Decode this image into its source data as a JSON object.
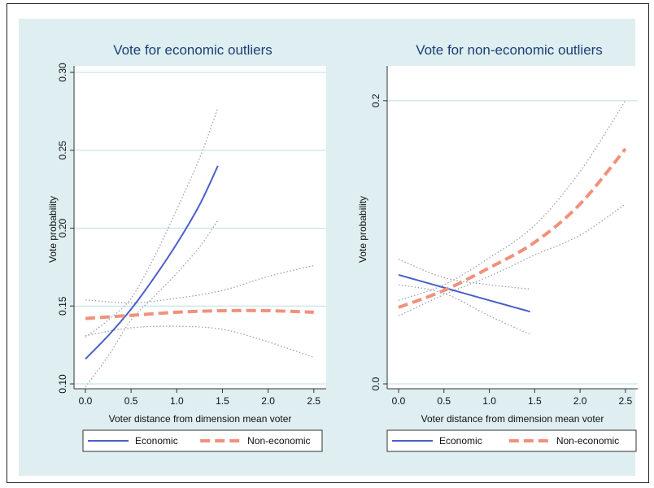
{
  "chart_data": [
    {
      "type": "line",
      "title": "Vote for economic outliers",
      "xlabel": "Voter distance from dimension mean voter",
      "ylabel": "Vote probability",
      "xlim": [
        0,
        2.6
      ],
      "ylim": [
        0.1,
        0.3
      ],
      "xticks": [
        "0.0",
        "0.5",
        "1.0",
        "1.5",
        "2.0",
        "2.5"
      ],
      "xtick_values": [
        0,
        0.5,
        1.0,
        1.5,
        2.0,
        2.5
      ],
      "yticks": [
        "0.10",
        "0.15",
        "0.20",
        "0.25",
        "0.30"
      ],
      "ytick_values": [
        0.1,
        0.15,
        0.2,
        0.25,
        0.3
      ],
      "grid": true,
      "series": [
        {
          "name": "Economic",
          "x": [
            0,
            0.25,
            0.5,
            0.75,
            1.0,
            1.25,
            1.45
          ],
          "values": [
            0.116,
            0.131,
            0.148,
            0.168,
            0.19,
            0.215,
            0.24
          ],
          "ci_lower": [
            0.098,
            0.118,
            0.141,
            0.156,
            0.171,
            0.188,
            0.205
          ],
          "ci_upper": [
            0.13,
            0.141,
            0.155,
            0.181,
            0.212,
            0.245,
            0.277
          ]
        },
        {
          "name": "Non-economic",
          "x": [
            0,
            0.5,
            1.0,
            1.5,
            2.0,
            2.5
          ],
          "values": [
            0.142,
            0.144,
            0.146,
            0.147,
            0.147,
            0.146
          ],
          "ci_lower": [
            0.131,
            0.136,
            0.137,
            0.135,
            0.127,
            0.117
          ],
          "ci_upper": [
            0.154,
            0.152,
            0.155,
            0.16,
            0.169,
            0.176
          ]
        }
      ]
    },
    {
      "type": "line",
      "title": "Vote for non-economic outliers",
      "xlabel": "Voter distance from dimension mean voter",
      "ylabel": "Vote probability",
      "xlim": [
        0,
        2.6
      ],
      "ylim": [
        0,
        0.22
      ],
      "xticks": [
        "0.0",
        "0.5",
        "1.0",
        "1.5",
        "2.0",
        "2.5"
      ],
      "xtick_values": [
        0,
        0.5,
        1.0,
        1.5,
        2.0,
        2.5
      ],
      "yticks": [
        "0.0",
        "0.2"
      ],
      "ytick_values": [
        0.0,
        0.2
      ],
      "grid": true,
      "series": [
        {
          "name": "Economic",
          "x": [
            0,
            0.5,
            1.0,
            1.45
          ],
          "values": [
            0.077,
            0.068,
            0.059,
            0.051
          ],
          "ci_lower": [
            0.07,
            0.064,
            0.048,
            0.035
          ],
          "ci_upper": [
            0.088,
            0.075,
            0.07,
            0.067
          ]
        },
        {
          "name": "Non-economic",
          "x": [
            0,
            0.5,
            1.0,
            1.5,
            2.0,
            2.5
          ],
          "values": [
            0.054,
            0.066,
            0.082,
            0.1,
            0.127,
            0.166
          ],
          "ci_lower": [
            0.048,
            0.063,
            0.076,
            0.091,
            0.105,
            0.127
          ],
          "ci_upper": [
            0.059,
            0.07,
            0.089,
            0.112,
            0.15,
            0.2
          ]
        }
      ]
    }
  ],
  "legend": {
    "entries": [
      {
        "label": "Economic",
        "color": "#4a5fc8",
        "style": "solid"
      },
      {
        "label": "Non-economic",
        "color": "#f2907c",
        "style": "dashed"
      }
    ],
    "placement": "bottom"
  },
  "colors": {
    "background": "#deeef1",
    "plot_region": "#ffffff",
    "grid": "#bcdfe3",
    "title": "#1c3f74",
    "economic": "#4a5fc8",
    "non_economic": "#f2907c",
    "ci": "#9aa1ad"
  }
}
